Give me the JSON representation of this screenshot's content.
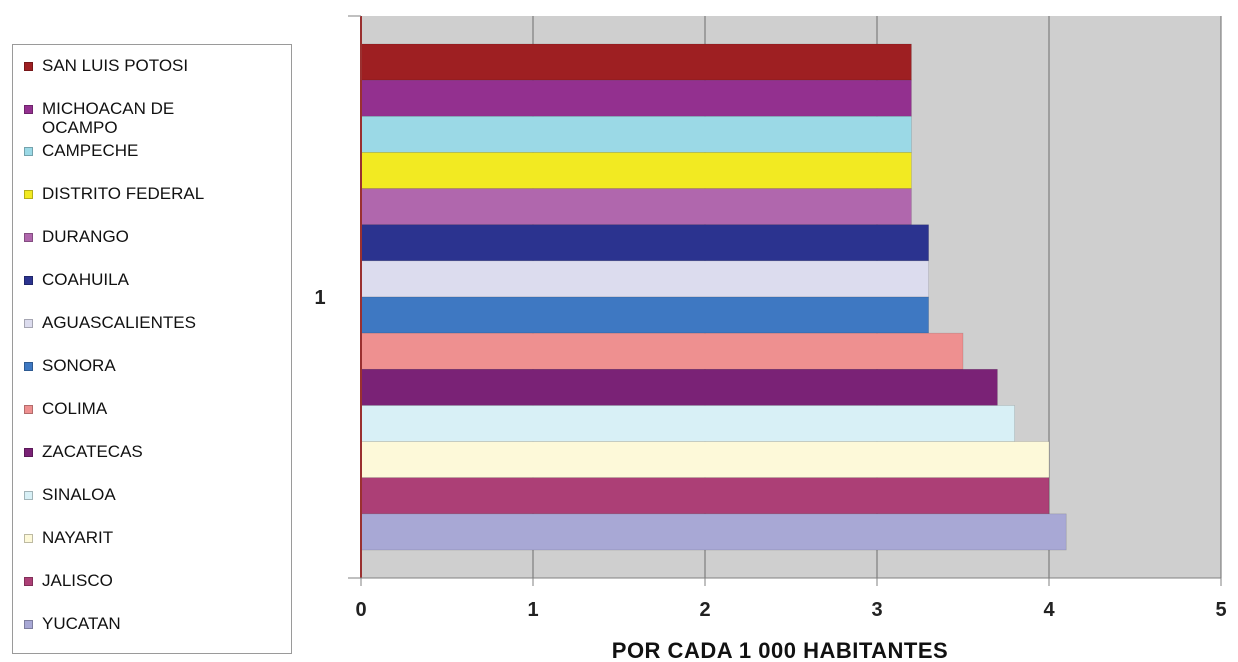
{
  "chart_data": {
    "type": "bar",
    "orientation": "horizontal",
    "title": "",
    "xlabel": "POR CADA 1 000 HABITANTES",
    "ylabel": "",
    "categories": [
      "1"
    ],
    "xlim": [
      0,
      5
    ],
    "xticks": [
      "0",
      "1",
      "2",
      "3",
      "4",
      "5"
    ],
    "grid": true,
    "legend_position": "left",
    "series": [
      {
        "name": "SAN LUIS POTOSI",
        "value": 3.2,
        "color": "#9e1f22"
      },
      {
        "name": "MICHOACAN DE OCAMPO",
        "value": 3.2,
        "color": "#93308f"
      },
      {
        "name": "CAMPECHE",
        "value": 3.2,
        "color": "#9bd9e6"
      },
      {
        "name": "DISTRITO FEDERAL",
        "value": 3.2,
        "color": "#f2ea22"
      },
      {
        "name": "DURANGO",
        "value": 3.2,
        "color": "#b067ad"
      },
      {
        "name": "COAHUILA",
        "value": 3.3,
        "color": "#2b338f"
      },
      {
        "name": "AGUASCALIENTES",
        "value": 3.3,
        "color": "#dcdcee"
      },
      {
        "name": "SONORA",
        "value": 3.3,
        "color": "#3e78c2"
      },
      {
        "name": "COLIMA",
        "value": 3.5,
        "color": "#ee9090"
      },
      {
        "name": "ZACATECAS",
        "value": 3.7,
        "color": "#7a2276"
      },
      {
        "name": "SINALOA",
        "value": 3.8,
        "color": "#d8f0f6"
      },
      {
        "name": "NAYARIT",
        "value": 4.0,
        "color": "#fdf9d9"
      },
      {
        "name": "JALISCO",
        "value": 4.0,
        "color": "#ac3f76"
      },
      {
        "name": "YUCATAN",
        "value": 4.1,
        "color": "#a8a8d5"
      }
    ]
  }
}
